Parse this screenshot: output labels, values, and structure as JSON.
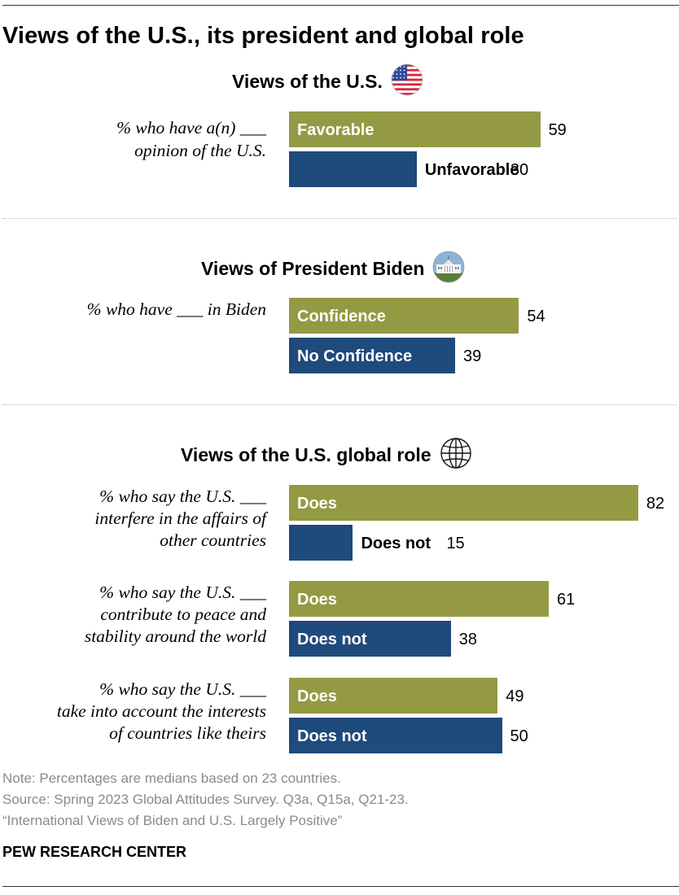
{
  "title": "Views of the U.S., its president and global role",
  "colors": {
    "positive": "#949a43",
    "negative": "#1f4a7c"
  },
  "chart_data": {
    "type": "bar",
    "orientation": "horizontal",
    "value_max": 82,
    "sections": [
      {
        "title": "Views of the U.S.",
        "icon": "us-flag-icon",
        "groups": [
          {
            "label_lines": [
              "% who have a(n) ___",
              "opinion of the U.S."
            ],
            "bars": [
              {
                "label": "Favorable",
                "value": 59,
                "polarity": "positive"
              },
              {
                "label": "Unfavorable",
                "value": 30,
                "polarity": "negative"
              }
            ]
          }
        ]
      },
      {
        "title": "Views of President Biden",
        "icon": "white-house-icon",
        "groups": [
          {
            "label_lines": [
              "% who have ___ in Biden"
            ],
            "bars": [
              {
                "label": "Confidence",
                "value": 54,
                "polarity": "positive"
              },
              {
                "label": "No Confidence",
                "value": 39,
                "polarity": "negative"
              }
            ]
          }
        ]
      },
      {
        "title": "Views of the U.S. global role",
        "icon": "globe-icon",
        "groups": [
          {
            "label_lines": [
              "% who say the U.S. ___",
              "interfere in the affairs of",
              "other countries"
            ],
            "bars": [
              {
                "label": "Does",
                "value": 82,
                "polarity": "positive"
              },
              {
                "label": "Does not",
                "value": 15,
                "polarity": "negative"
              }
            ]
          },
          {
            "label_lines": [
              "% who say the U.S. ___",
              "contribute to peace and",
              "stability around the world"
            ],
            "bars": [
              {
                "label": "Does",
                "value": 61,
                "polarity": "positive"
              },
              {
                "label": "Does not",
                "value": 38,
                "polarity": "negative"
              }
            ]
          },
          {
            "label_lines": [
              "% who say the U.S. ___",
              "take into account the interests",
              "of countries like theirs"
            ],
            "bars": [
              {
                "label": "Does",
                "value": 49,
                "polarity": "positive"
              },
              {
                "label": "Does not",
                "value": 50,
                "polarity": "negative"
              }
            ]
          }
        ]
      }
    ]
  },
  "notes": {
    "note": "Note: Percentages are medians based on 23 countries.",
    "source": "Source: Spring 2023 Global Attitudes Survey. Q3a, Q15a, Q21-23.",
    "report": "“International Views of Biden and U.S. Largely Positive”"
  },
  "brand": "PEW RESEARCH CENTER"
}
